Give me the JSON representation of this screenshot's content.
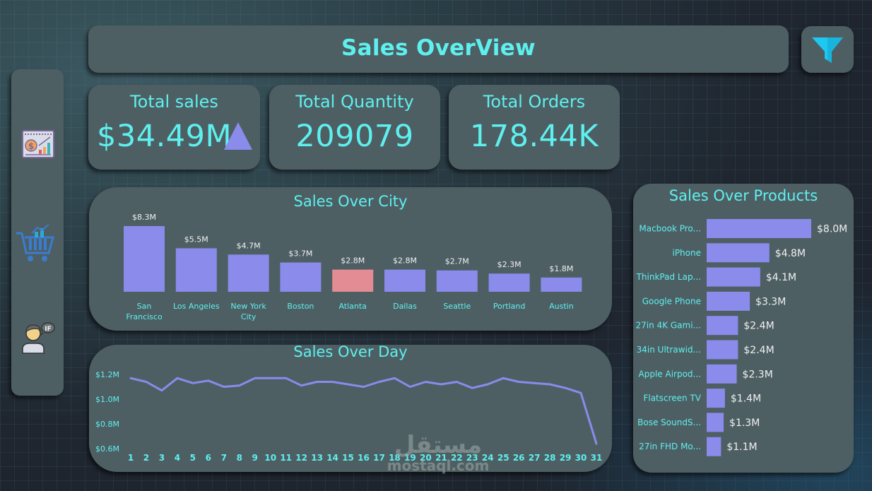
{
  "header": {
    "title": "Sales OverView",
    "filter_icon": "funnel-filter-icon"
  },
  "sidebar": {
    "items": [
      {
        "name": "sales-report-icon",
        "tooltip": ""
      },
      {
        "name": "shopping-cart-analytics-icon",
        "tooltip": ""
      },
      {
        "name": "user-if-speech-icon",
        "tooltip": ""
      }
    ]
  },
  "kpis": {
    "sales": {
      "label": "Total sales",
      "value": "$34.49M",
      "trend": "up"
    },
    "quantity": {
      "label": "Total Quantity",
      "value": "209079"
    },
    "orders": {
      "label": "Total Orders",
      "value": "178.44K"
    }
  },
  "colors": {
    "accent": "#5ef0ee",
    "bar": "#8a8bea",
    "bar_highlight": "#e38c93",
    "panel": "#4e5f64",
    "value_text": "#f0f0f0"
  },
  "watermark": {
    "arabic": "مستقل",
    "latin": "mostaql.com"
  },
  "chart_data": [
    {
      "id": "city",
      "type": "bar",
      "title": "Sales Over City",
      "categories": [
        "San Francisco",
        "Los Angeles",
        "New York City",
        "Boston",
        "Atlanta",
        "Dallas",
        "Seattle",
        "Portland",
        "Austin"
      ],
      "category_lines": [
        [
          "San",
          "Francisco"
        ],
        [
          "Los Angeles"
        ],
        [
          "New York",
          "City"
        ],
        [
          "Boston"
        ],
        [
          "Atlanta"
        ],
        [
          "Dallas"
        ],
        [
          "Seattle"
        ],
        [
          "Portland"
        ],
        [
          "Austin"
        ]
      ],
      "values": [
        8.3,
        5.5,
        4.7,
        3.7,
        2.8,
        2.8,
        2.7,
        2.3,
        1.8
      ],
      "labels": [
        "$8.3M",
        "$5.5M",
        "$4.7M",
        "$3.7M",
        "$2.8M",
        "$2.8M",
        "$2.7M",
        "$2.3M",
        "$1.8M"
      ],
      "highlight_index": 4,
      "unit": "$M",
      "xlabel": "",
      "ylabel": ""
    },
    {
      "id": "day",
      "type": "line",
      "title": "Sales Over Day",
      "x": [
        1,
        2,
        3,
        4,
        5,
        6,
        7,
        8,
        9,
        10,
        11,
        12,
        13,
        14,
        15,
        16,
        17,
        18,
        19,
        20,
        21,
        22,
        23,
        24,
        25,
        26,
        27,
        28,
        29,
        30,
        31
      ],
      "values": [
        1.17,
        1.14,
        1.07,
        1.17,
        1.13,
        1.15,
        1.1,
        1.11,
        1.17,
        1.17,
        1.17,
        1.11,
        1.14,
        1.14,
        1.12,
        1.1,
        1.14,
        1.17,
        1.1,
        1.14,
        1.12,
        1.14,
        1.09,
        1.12,
        1.17,
        1.14,
        1.13,
        1.12,
        1.09,
        1.05,
        0.64
      ],
      "yticks": [
        "$0.6M",
        "$0.8M",
        "$1.0M",
        "$1.2M"
      ],
      "ytick_values": [
        0.6,
        0.8,
        1.0,
        1.2
      ],
      "ylim": [
        0.6,
        1.2
      ],
      "unit": "$M",
      "grid": false,
      "xlabel": "",
      "ylabel": ""
    },
    {
      "id": "products",
      "type": "bar",
      "orientation": "horizontal",
      "title": "Sales Over Products",
      "categories": [
        "Macbook Pro...",
        "iPhone",
        "ThinkPad Lap...",
        "Google Phone",
        "27in 4K Gami...",
        "34in Ultrawid...",
        "Apple Airpod...",
        "Flatscreen TV",
        "Bose SoundS...",
        "27in FHD Mo..."
      ],
      "values": [
        8.0,
        4.8,
        4.1,
        3.3,
        2.4,
        2.4,
        2.3,
        1.4,
        1.3,
        1.1
      ],
      "labels": [
        "$8.0M",
        "$4.8M",
        "$4.1M",
        "$3.3M",
        "$2.4M",
        "$2.4M",
        "$2.3M",
        "$1.4M",
        "$1.3M",
        "$1.1M"
      ],
      "unit": "$M",
      "xlabel": "",
      "ylabel": ""
    }
  ]
}
